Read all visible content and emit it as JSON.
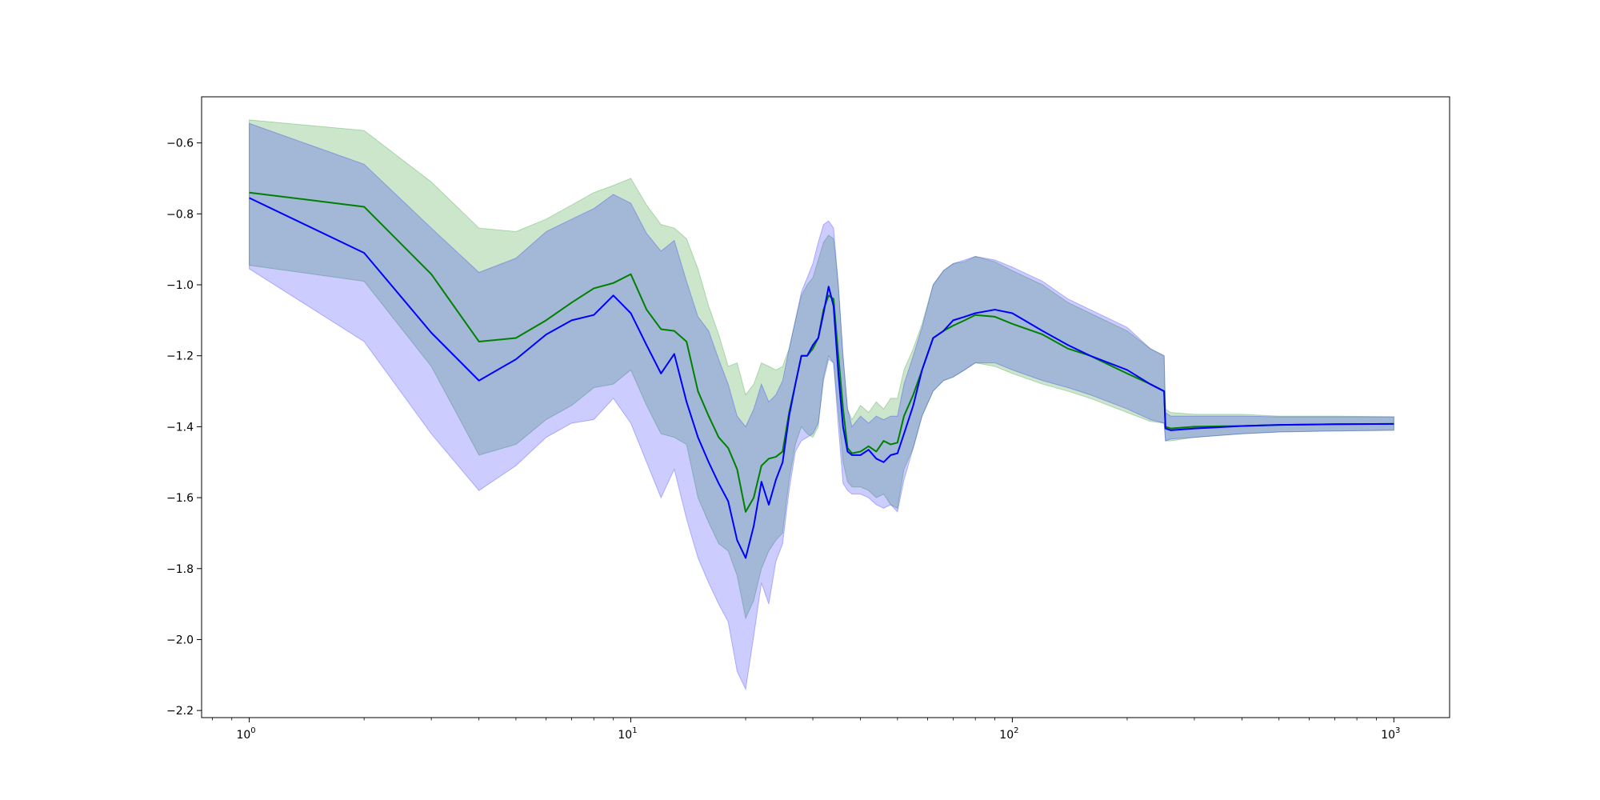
{
  "chart_data": {
    "type": "line",
    "title": "",
    "xlabel": "",
    "ylabel": "",
    "xscale": "log",
    "xlim": [
      0.75,
      1400
    ],
    "ylim": [
      -2.22,
      -0.47
    ],
    "grid": false,
    "y_ticks": [
      -0.6,
      -0.8,
      -1.0,
      -1.2,
      -1.4,
      -1.6,
      -1.8,
      -2.0,
      -2.2
    ],
    "y_tick_labels": [
      "−0.6",
      "−0.8",
      "−1.0",
      "−1.2",
      "−1.4",
      "−1.6",
      "−1.8",
      "−2.0",
      "−2.2"
    ],
    "x_major_ticks": [
      1,
      10,
      100,
      1000
    ],
    "x_tick_labels": [
      {
        "base": "10",
        "exp": "0"
      },
      {
        "base": "10",
        "exp": "1"
      },
      {
        "base": "10",
        "exp": "2"
      },
      {
        "base": "10",
        "exp": "3"
      }
    ],
    "series": [
      {
        "color": "#008000",
        "band_color": "#008000",
        "x": [
          1,
          2,
          3,
          4,
          5,
          6,
          7,
          8,
          9,
          10,
          11,
          12,
          13,
          14,
          15,
          16,
          17,
          18,
          19,
          20,
          21,
          22,
          23,
          24,
          25,
          26,
          27,
          28,
          29,
          30,
          31,
          32,
          33,
          34,
          35,
          36,
          37,
          38,
          40,
          42,
          44,
          46,
          48,
          50,
          52,
          55,
          58,
          62,
          66,
          70,
          75,
          80,
          90,
          100,
          120,
          140,
          160,
          200,
          230,
          250,
          252,
          260,
          300,
          400,
          500,
          700,
          1000
        ],
        "mean": [
          -0.74,
          -0.78,
          -0.97,
          -1.16,
          -1.15,
          -1.1,
          -1.05,
          -1.01,
          -0.995,
          -0.97,
          -1.07,
          -1.125,
          -1.13,
          -1.16,
          -1.3,
          -1.37,
          -1.43,
          -1.46,
          -1.52,
          -1.64,
          -1.6,
          -1.51,
          -1.49,
          -1.485,
          -1.47,
          -1.36,
          -1.28,
          -1.2,
          -1.2,
          -1.18,
          -1.15,
          -1.07,
          -1.03,
          -1.04,
          -1.2,
          -1.35,
          -1.46,
          -1.475,
          -1.47,
          -1.455,
          -1.47,
          -1.44,
          -1.45,
          -1.445,
          -1.37,
          -1.31,
          -1.24,
          -1.15,
          -1.13,
          -1.115,
          -1.1,
          -1.085,
          -1.09,
          -1.11,
          -1.14,
          -1.18,
          -1.2,
          -1.25,
          -1.28,
          -1.3,
          -1.4,
          -1.405,
          -1.4,
          -1.398,
          -1.395,
          -1.393,
          -1.392
        ],
        "upper": [
          -0.535,
          -0.565,
          -0.71,
          -0.84,
          -0.85,
          -0.815,
          -0.775,
          -0.74,
          -0.72,
          -0.7,
          -0.775,
          -0.83,
          -0.84,
          -0.87,
          -0.955,
          -1.06,
          -1.14,
          -1.23,
          -1.22,
          -1.31,
          -1.28,
          -1.22,
          -1.23,
          -1.24,
          -1.23,
          -1.18,
          -1.1,
          -1.03,
          -1.0,
          -0.98,
          -0.93,
          -0.88,
          -0.86,
          -0.87,
          -1.0,
          -1.2,
          -1.35,
          -1.38,
          -1.34,
          -1.36,
          -1.33,
          -1.35,
          -1.32,
          -1.32,
          -1.24,
          -1.18,
          -1.11,
          -1.0,
          -0.96,
          -0.94,
          -0.935,
          -0.92,
          -0.935,
          -0.96,
          -1.0,
          -1.05,
          -1.08,
          -1.13,
          -1.18,
          -1.2,
          -1.35,
          -1.36,
          -1.365,
          -1.365,
          -1.37,
          -1.37,
          -1.372
        ],
        "lower": [
          -0.945,
          -0.99,
          -1.23,
          -1.48,
          -1.45,
          -1.38,
          -1.34,
          -1.29,
          -1.28,
          -1.24,
          -1.34,
          -1.42,
          -1.43,
          -1.45,
          -1.6,
          -1.67,
          -1.73,
          -1.75,
          -1.82,
          -1.94,
          -1.89,
          -1.8,
          -1.75,
          -1.72,
          -1.7,
          -1.55,
          -1.45,
          -1.4,
          -1.42,
          -1.43,
          -1.4,
          -1.26,
          -1.2,
          -1.22,
          -1.36,
          -1.5,
          -1.555,
          -1.57,
          -1.57,
          -1.58,
          -1.6,
          -1.59,
          -1.62,
          -1.63,
          -1.52,
          -1.46,
          -1.37,
          -1.3,
          -1.27,
          -1.26,
          -1.24,
          -1.22,
          -1.23,
          -1.25,
          -1.28,
          -1.3,
          -1.32,
          -1.36,
          -1.385,
          -1.39,
          -1.44,
          -1.44,
          -1.43,
          -1.42,
          -1.415,
          -1.412,
          -1.41
        ]
      },
      {
        "color": "#0000ff",
        "band_color": "#0000ff",
        "x": [
          1,
          2,
          3,
          4,
          5,
          6,
          7,
          8,
          9,
          10,
          11,
          12,
          13,
          14,
          15,
          16,
          17,
          18,
          19,
          20,
          21,
          22,
          23,
          24,
          25,
          26,
          27,
          28,
          29,
          30,
          31,
          32,
          33,
          34,
          35,
          36,
          37,
          38,
          40,
          42,
          44,
          46,
          48,
          50,
          52,
          55,
          58,
          62,
          66,
          70,
          75,
          80,
          90,
          100,
          120,
          140,
          160,
          200,
          230,
          250,
          252,
          260,
          300,
          400,
          500,
          700,
          1000
        ],
        "mean": [
          -0.755,
          -0.91,
          -1.135,
          -1.27,
          -1.21,
          -1.14,
          -1.1,
          -1.085,
          -1.03,
          -1.08,
          -1.17,
          -1.25,
          -1.195,
          -1.33,
          -1.43,
          -1.5,
          -1.56,
          -1.61,
          -1.72,
          -1.77,
          -1.68,
          -1.555,
          -1.62,
          -1.55,
          -1.5,
          -1.37,
          -1.28,
          -1.2,
          -1.2,
          -1.17,
          -1.15,
          -1.08,
          -1.005,
          -1.06,
          -1.25,
          -1.4,
          -1.47,
          -1.48,
          -1.48,
          -1.465,
          -1.49,
          -1.5,
          -1.48,
          -1.475,
          -1.42,
          -1.34,
          -1.24,
          -1.15,
          -1.13,
          -1.1,
          -1.09,
          -1.08,
          -1.07,
          -1.08,
          -1.13,
          -1.17,
          -1.2,
          -1.24,
          -1.28,
          -1.3,
          -1.405,
          -1.41,
          -1.405,
          -1.398,
          -1.395,
          -1.393,
          -1.392
        ],
        "upper": [
          -0.545,
          -0.66,
          -0.84,
          -0.965,
          -0.925,
          -0.85,
          -0.815,
          -0.785,
          -0.745,
          -0.77,
          -0.855,
          -0.905,
          -0.875,
          -0.99,
          -1.09,
          -1.13,
          -1.21,
          -1.28,
          -1.37,
          -1.4,
          -1.35,
          -1.28,
          -1.33,
          -1.31,
          -1.27,
          -1.18,
          -1.1,
          -1.02,
          -0.98,
          -0.94,
          -0.88,
          -0.83,
          -0.82,
          -0.84,
          -1.0,
          -1.2,
          -1.35,
          -1.4,
          -1.37,
          -1.39,
          -1.37,
          -1.38,
          -1.37,
          -1.37,
          -1.28,
          -1.2,
          -1.12,
          -1.0,
          -0.96,
          -0.94,
          -0.93,
          -0.92,
          -0.93,
          -0.95,
          -0.99,
          -1.04,
          -1.07,
          -1.12,
          -1.18,
          -1.2,
          -1.36,
          -1.37,
          -1.37,
          -1.37,
          -1.372,
          -1.372,
          -1.372
        ],
        "lower": [
          -0.955,
          -1.16,
          -1.42,
          -1.58,
          -1.51,
          -1.43,
          -1.39,
          -1.38,
          -1.32,
          -1.39,
          -1.5,
          -1.6,
          -1.52,
          -1.66,
          -1.77,
          -1.84,
          -1.9,
          -1.95,
          -2.09,
          -2.14,
          -1.99,
          -1.84,
          -1.9,
          -1.78,
          -1.73,
          -1.58,
          -1.47,
          -1.44,
          -1.43,
          -1.42,
          -1.39,
          -1.27,
          -1.21,
          -1.22,
          -1.4,
          -1.56,
          -1.58,
          -1.59,
          -1.59,
          -1.6,
          -1.62,
          -1.63,
          -1.62,
          -1.64,
          -1.55,
          -1.46,
          -1.37,
          -1.3,
          -1.27,
          -1.26,
          -1.24,
          -1.22,
          -1.22,
          -1.24,
          -1.27,
          -1.29,
          -1.31,
          -1.35,
          -1.38,
          -1.39,
          -1.44,
          -1.435,
          -1.43,
          -1.42,
          -1.415,
          -1.412,
          -1.41
        ]
      }
    ]
  }
}
